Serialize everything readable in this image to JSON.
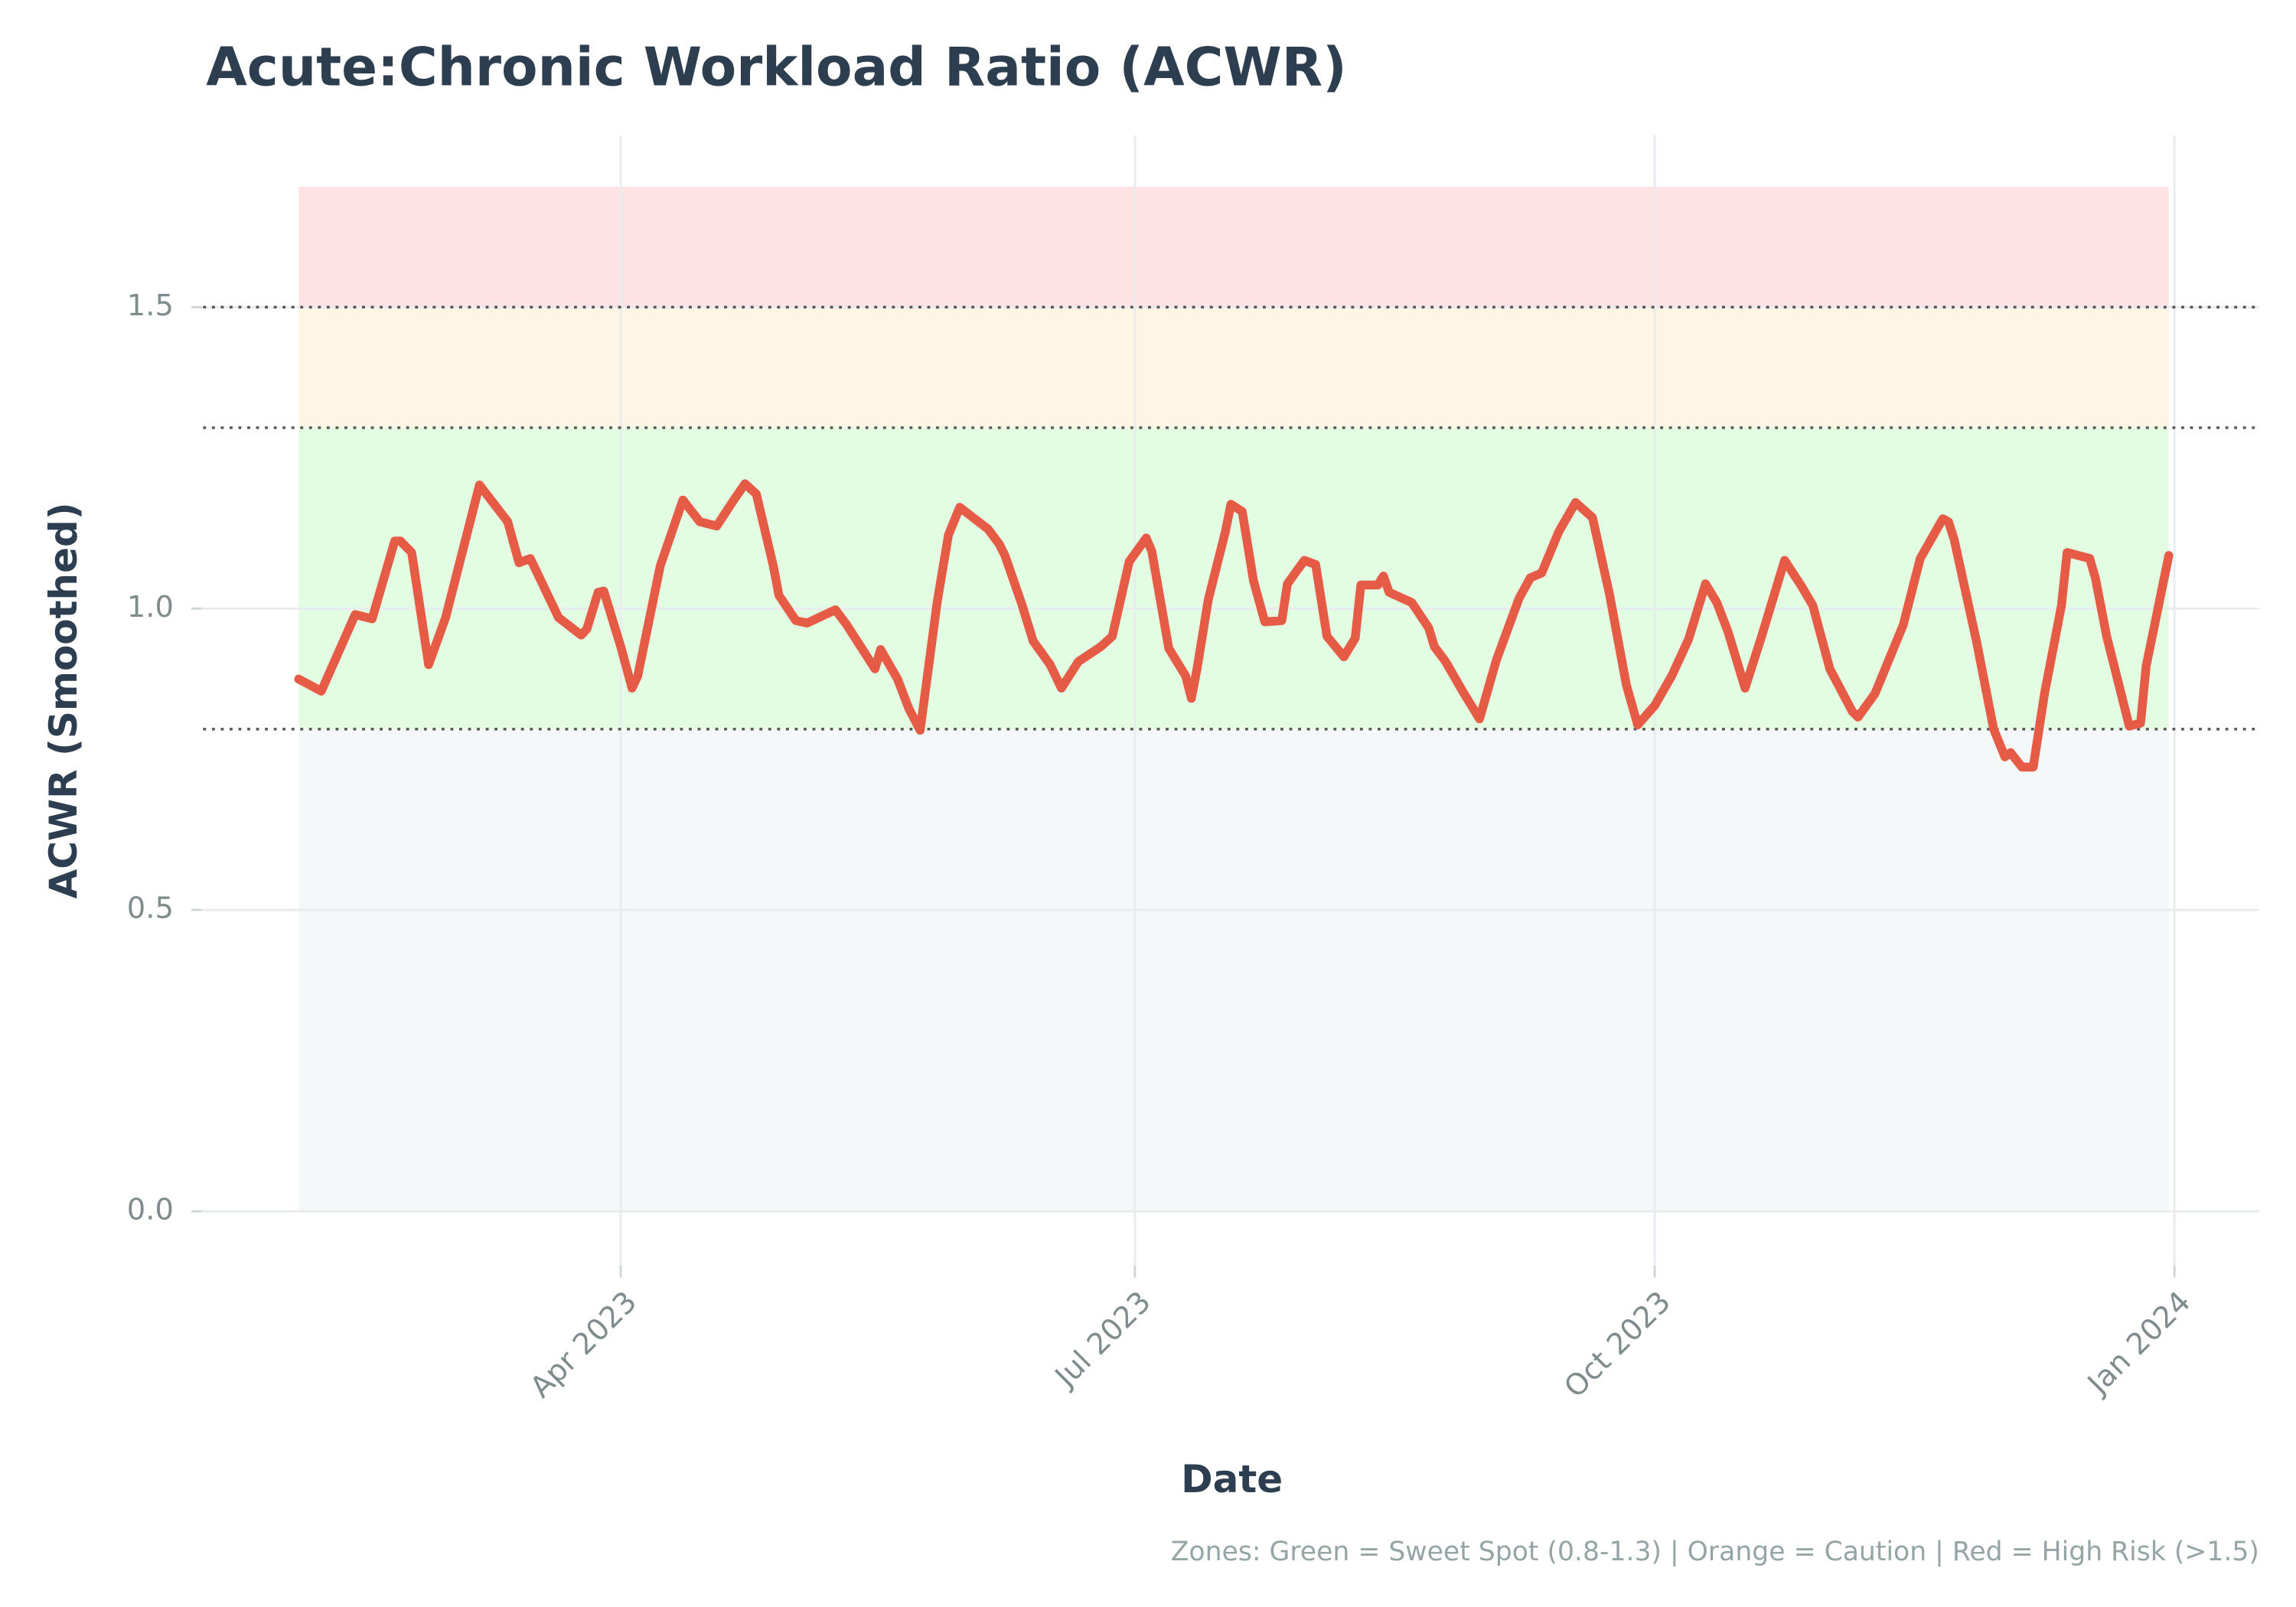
{
  "chart_data": {
    "type": "line",
    "title": "Acute:Chronic Workload Ratio (ACWR)",
    "xlabel": "Date",
    "ylabel": "ACWR (Smoothed)",
    "note": "Zones: Green = Sweet Spot (0.8-1.3) | Orange = Caution | Red = High Risk (>1.5)",
    "color": "#e55b45",
    "x": [
      "2023-02-03",
      "2023-02-07",
      "2023-02-13",
      "2023-02-16",
      "2023-02-20",
      "2023-02-21",
      "2023-02-23",
      "2023-02-26",
      "2023-03-01",
      "2023-03-07",
      "2023-03-12",
      "2023-03-14",
      "2023-03-16",
      "2023-03-21",
      "2023-03-25",
      "2023-03-26",
      "2023-03-28",
      "2023-03-29",
      "2023-04-01",
      "2023-04-03",
      "2023-04-04",
      "2023-04-08",
      "2023-04-12",
      "2023-04-15",
      "2023-04-18",
      "2023-04-21",
      "2023-04-23",
      "2023-04-25",
      "2023-04-28",
      "2023-04-29",
      "2023-05-02",
      "2023-05-04",
      "2023-05-09",
      "2023-05-11",
      "2023-05-16",
      "2023-05-17",
      "2023-05-20",
      "2023-05-22",
      "2023-05-24",
      "2023-05-27",
      "2023-05-29",
      "2023-05-31",
      "2023-06-05",
      "2023-06-07",
      "2023-06-08",
      "2023-06-11",
      "2023-06-13",
      "2023-06-16",
      "2023-06-18",
      "2023-06-21",
      "2023-06-25",
      "2023-06-27",
      "2023-06-30",
      "2023-07-03",
      "2023-07-04",
      "2023-07-07",
      "2023-07-10",
      "2023-07-11",
      "2023-07-12",
      "2023-07-14",
      "2023-07-17",
      "2023-07-18",
      "2023-07-20",
      "2023-07-22",
      "2023-07-24",
      "2023-07-27",
      "2023-07-28",
      "2023-07-31",
      "2023-08-02",
      "2023-08-04",
      "2023-08-07",
      "2023-08-09",
      "2023-08-10",
      "2023-08-13",
      "2023-08-14",
      "2023-08-15",
      "2023-08-19",
      "2023-08-22",
      "2023-08-23",
      "2023-08-25",
      "2023-08-28",
      "2023-08-31",
      "2023-09-03",
      "2023-09-07",
      "2023-09-09",
      "2023-09-11",
      "2023-09-14",
      "2023-09-17",
      "2023-09-20",
      "2023-09-23",
      "2023-09-26",
      "2023-09-28",
      "2023-10-01",
      "2023-10-04",
      "2023-10-07",
      "2023-10-10",
      "2023-10-12",
      "2023-10-14",
      "2023-10-17",
      "2023-10-20",
      "2023-10-24",
      "2023-10-27",
      "2023-10-29",
      "2023-11-01",
      "2023-11-05",
      "2023-11-06",
      "2023-11-09",
      "2023-11-14",
      "2023-11-17",
      "2023-11-21",
      "2023-11-22",
      "2023-11-23",
      "2023-11-27",
      "2023-11-30",
      "2023-12-02",
      "2023-12-03",
      "2023-12-05",
      "2023-12-07",
      "2023-12-09",
      "2023-12-12",
      "2023-12-13",
      "2023-12-17",
      "2023-12-18",
      "2023-12-20",
      "2023-12-21",
      "2023-12-24",
      "2023-12-26",
      "2023-12-27",
      "2023-12-31"
    ],
    "values": [
      0.883,
      0.863,
      0.99,
      0.983,
      1.112,
      1.112,
      1.093,
      0.907,
      0.985,
      1.205,
      1.144,
      1.076,
      1.083,
      0.985,
      0.956,
      0.966,
      1.027,
      1.029,
      0.937,
      0.868,
      0.888,
      1.071,
      1.18,
      1.144,
      1.137,
      1.18,
      1.207,
      1.19,
      1.071,
      1.022,
      0.98,
      0.976,
      0.998,
      0.973,
      0.9,
      0.932,
      0.883,
      0.834,
      0.798,
      1.01,
      1.122,
      1.168,
      1.132,
      1.107,
      1.088,
      1.007,
      0.946,
      0.907,
      0.868,
      0.912,
      0.937,
      0.954,
      1.078,
      1.117,
      1.095,
      0.934,
      0.888,
      0.851,
      0.9,
      1.015,
      1.127,
      1.173,
      1.161,
      1.046,
      0.978,
      0.98,
      1.041,
      1.08,
      1.073,
      0.954,
      0.92,
      0.951,
      1.039,
      1.039,
      1.054,
      1.027,
      1.01,
      0.968,
      0.937,
      0.912,
      0.863,
      0.817,
      0.915,
      1.017,
      1.051,
      1.059,
      1.127,
      1.176,
      1.151,
      1.024,
      0.873,
      0.807,
      0.839,
      0.888,
      0.949,
      1.041,
      1.01,
      0.961,
      0.868,
      0.956,
      1.08,
      1.037,
      1.005,
      0.9,
      0.829,
      0.82,
      0.859,
      0.973,
      1.083,
      1.149,
      1.144,
      1.115,
      0.944,
      0.8,
      0.754,
      0.761,
      0.737,
      0.737,
      0.859,
      1.005,
      1.093,
      1.083,
      1.051,
      0.954,
      0.917,
      0.805,
      0.81,
      0.905,
      1.088
    ],
    "xlim": [
      "2023-01-15",
      "2024-01-16"
    ],
    "xticks": [
      {
        "value": "2023-04-01",
        "label": "Apr 2023"
      },
      {
        "value": "2023-07-01",
        "label": "Jul 2023"
      },
      {
        "value": "2023-10-01",
        "label": "Oct 2023"
      },
      {
        "value": "2024-01-01",
        "label": "Jan 2024"
      }
    ],
    "ylim": [
      -0.09,
      1.785
    ],
    "yticks": [
      {
        "value": 0,
        "label": "0.0"
      },
      0.5,
      {
        "value": 1,
        "label": "1.0"
      },
      1.5
    ],
    "grid": true,
    "zones": [
      {
        "range": [
          0,
          0.8
        ],
        "color": "#f4f8f9"
      },
      {
        "range": [
          0.8,
          1.3
        ],
        "color": "#e3fde3"
      },
      {
        "range": [
          1.3,
          1.5
        ],
        "color": "#fef5e5"
      },
      {
        "range": [
          1.5,
          1.7
        ],
        "color": "#fee3e5"
      }
    ],
    "thresholds": [
      0.8,
      1.3,
      1.5
    ]
  }
}
